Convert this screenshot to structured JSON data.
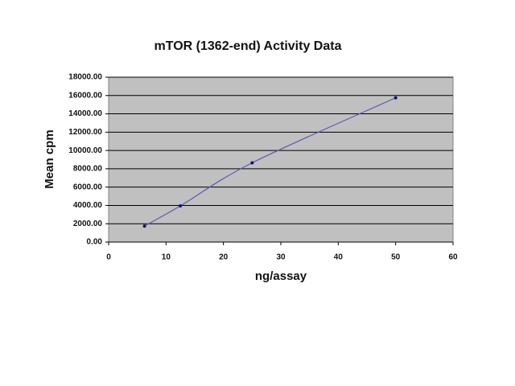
{
  "chart_data": {
    "type": "line",
    "title": "mTOR (1362-end) Activity Data",
    "x_label": "ng/assay",
    "y_label": "Mean cpm",
    "x": [
      6.25,
      12.5,
      25,
      50
    ],
    "series": [
      {
        "name": "Mean cpm",
        "color": "#5a5ab4",
        "marker_color": "#101070",
        "values": [
          1750,
          3950,
          8650,
          15750
        ]
      }
    ],
    "xlim": [
      0,
      60
    ],
    "xticks": [
      0,
      10,
      20,
      30,
      40,
      50,
      60
    ],
    "ylim": [
      0,
      18000
    ],
    "yticks": [
      {
        "value": 0,
        "label": "0.00"
      },
      {
        "value": 2000,
        "label": "2000.00"
      },
      {
        "value": 4000,
        "label": "4000.00"
      },
      {
        "value": 6000,
        "label": "6000.00"
      },
      {
        "value": 8000,
        "label": "8000.00"
      },
      {
        "value": 10000,
        "label": "10000.00"
      },
      {
        "value": 12000,
        "label": "12000.00"
      },
      {
        "value": 14000,
        "label": "14000.00"
      },
      {
        "value": 16000,
        "label": "16000.00"
      },
      {
        "value": 18000,
        "label": "18000.00"
      }
    ],
    "grid": true,
    "plot_background": "#c0c0c0"
  }
}
